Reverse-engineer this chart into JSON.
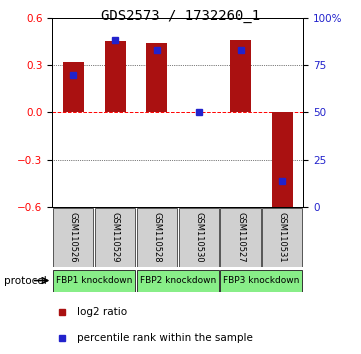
{
  "title": "GDS2573 / 1732260_1",
  "samples": [
    "GSM110526",
    "GSM110529",
    "GSM110528",
    "GSM110530",
    "GSM110527",
    "GSM110531"
  ],
  "log2_ratios": [
    0.32,
    0.45,
    0.44,
    0.0,
    0.46,
    -0.62
  ],
  "percentile_ranks": [
    70,
    88,
    83,
    50,
    83,
    14
  ],
  "ylim_left": [
    -0.6,
    0.6
  ],
  "yticks_left": [
    -0.6,
    -0.3,
    0.0,
    0.3,
    0.6
  ],
  "yticks_right": [
    0,
    25,
    50,
    75,
    100
  ],
  "bar_color": "#aa1111",
  "blue_color": "#2222cc",
  "sample_box_color": "#d0d0d0",
  "protocol_color": "#88ee88",
  "title_fontsize": 10,
  "tick_fontsize": 7.5,
  "bar_width": 0.5,
  "protocols": [
    {
      "label": "FBP1 knockdown",
      "start": 0,
      "end": 1
    },
    {
      "label": "FBP2 knockdown",
      "start": 2,
      "end": 3
    },
    {
      "label": "FBP3 knockdown",
      "start": 4,
      "end": 5
    }
  ]
}
